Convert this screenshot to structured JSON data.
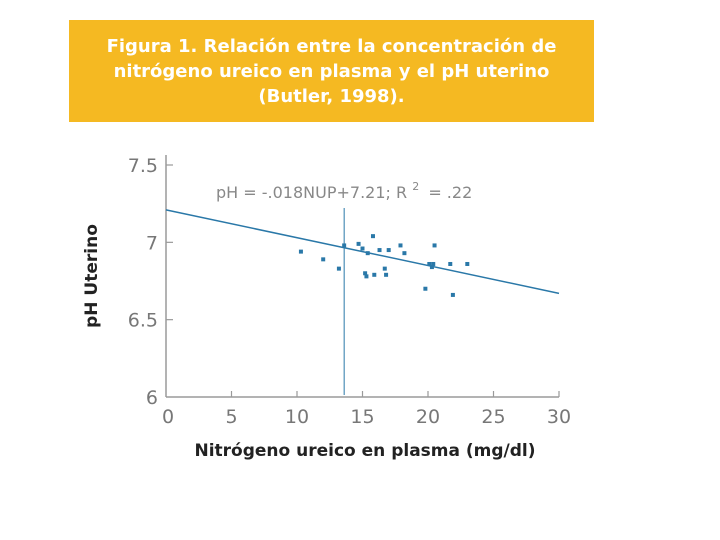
{
  "title_lines": [
    "Figura 1. Relación entre la concentración de",
    "nitrógeno ureico en plasma y el pH uterino",
    "(Butler, 1998)."
  ],
  "chart_data": {
    "type": "scatter",
    "xlabel": "Nitrógeno ureico en plasma (mg/dl)",
    "ylabel": "pH Uterino",
    "xlim": [
      0,
      30
    ],
    "ylim": [
      6,
      7.5
    ],
    "xticks": [
      "0",
      "5",
      "10",
      "15",
      "20",
      "25",
      "30"
    ],
    "yticks": [
      "6",
      "6.5",
      "7",
      "7.5"
    ],
    "equation": {
      "text": "pH = -.018NUP+7.21; R",
      "superscript": "2",
      "tail": "= .22"
    },
    "regression": {
      "slope": -0.018,
      "intercept": 7.21
    },
    "vertical_line_x": 13.6,
    "points": [
      {
        "x": 10.3,
        "y": 6.94
      },
      {
        "x": 12.0,
        "y": 6.89
      },
      {
        "x": 13.2,
        "y": 6.83
      },
      {
        "x": 13.6,
        "y": 6.98
      },
      {
        "x": 14.7,
        "y": 6.99
      },
      {
        "x": 15.0,
        "y": 6.96
      },
      {
        "x": 15.2,
        "y": 6.8
      },
      {
        "x": 15.3,
        "y": 6.78
      },
      {
        "x": 15.4,
        "y": 6.93
      },
      {
        "x": 15.8,
        "y": 7.04
      },
      {
        "x": 15.9,
        "y": 6.79
      },
      {
        "x": 16.3,
        "y": 6.95
      },
      {
        "x": 16.7,
        "y": 6.83
      },
      {
        "x": 16.8,
        "y": 6.79
      },
      {
        "x": 17.0,
        "y": 6.95
      },
      {
        "x": 17.9,
        "y": 6.98
      },
      {
        "x": 18.2,
        "y": 6.93
      },
      {
        "x": 19.8,
        "y": 6.7
      },
      {
        "x": 20.1,
        "y": 6.86
      },
      {
        "x": 20.3,
        "y": 6.84
      },
      {
        "x": 20.4,
        "y": 6.86
      },
      {
        "x": 20.5,
        "y": 6.98
      },
      {
        "x": 21.7,
        "y": 6.86
      },
      {
        "x": 21.9,
        "y": 6.66
      },
      {
        "x": 23.0,
        "y": 6.86
      }
    ],
    "colors": {
      "title_background": "#f5b922",
      "title_text": "#ffffff",
      "series": "#2a78a8",
      "axis": "#9a9a9a"
    }
  }
}
